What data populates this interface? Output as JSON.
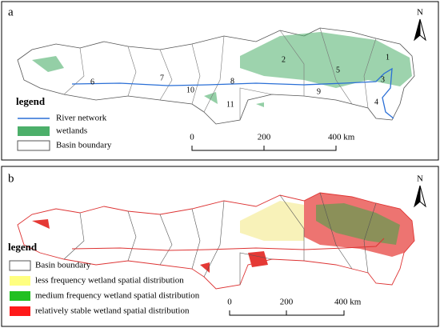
{
  "panels": [
    {
      "label": "a",
      "north": "N",
      "basin_labels": [
        "1",
        "2",
        "3",
        "4",
        "5",
        "6",
        "7",
        "8",
        "9",
        "10",
        "11"
      ],
      "legend": {
        "title": "legend",
        "items": [
          "River network",
          "wetlands",
          "Basin boundary"
        ]
      },
      "scale": [
        "0",
        "200",
        "400 km"
      ]
    },
    {
      "label": "b",
      "north": "N",
      "legend": {
        "title": "legend",
        "items": [
          "Basin boundary",
          "less  frequency wetland spatial distribution",
          "medium  frequency wetland spatial distribution",
          "relatively stable wetland spatial distribution"
        ]
      },
      "scale": [
        "0",
        "200",
        "400 km"
      ]
    }
  ]
}
